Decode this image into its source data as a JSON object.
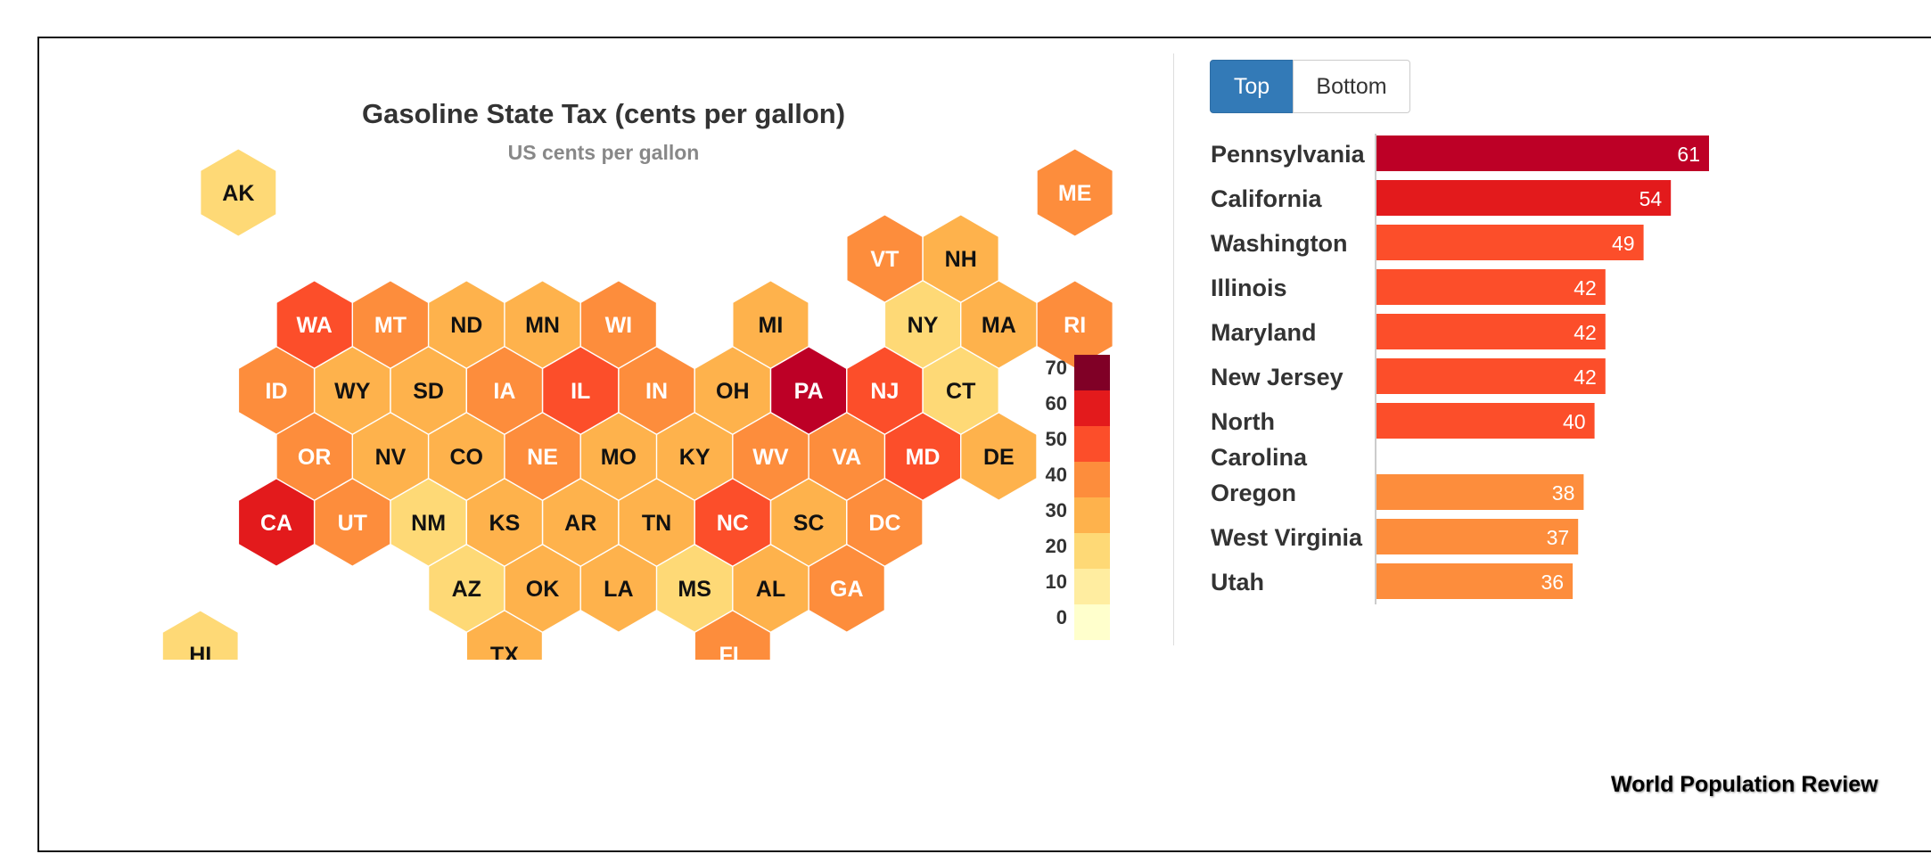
{
  "chart_data": [
    {
      "type": "heatmap",
      "title": "Gasoline State Tax (cents per gallon)",
      "subtitle": "US cents per gallon",
      "color_scale": {
        "ticks": [
          0,
          10,
          20,
          30,
          40,
          50,
          60,
          70
        ],
        "colors": [
          "#ffffcc",
          "#ffeda0",
          "#fed976",
          "#feb24c",
          "#fd8d3c",
          "#fc4e2a",
          "#e31a1c",
          "#bd0026",
          "#800026"
        ]
      },
      "states": [
        {
          "code": "AK",
          "value": 15,
          "row": -1,
          "col": -1
        },
        {
          "code": "ME",
          "value": 30,
          "row": -1,
          "col": 10
        },
        {
          "code": "VT",
          "value": 32,
          "row": 0,
          "col": 8
        },
        {
          "code": "NH",
          "value": 24,
          "row": 0,
          "col": 9
        },
        {
          "code": "WA",
          "value": 49,
          "row": 1,
          "col": 0
        },
        {
          "code": "MT",
          "value": 33,
          "row": 1,
          "col": 1
        },
        {
          "code": "ND",
          "value": 23,
          "row": 1,
          "col": 2
        },
        {
          "code": "MN",
          "value": 29,
          "row": 1,
          "col": 3
        },
        {
          "code": "WI",
          "value": 33,
          "row": 1,
          "col": 4
        },
        {
          "code": "MI",
          "value": 27,
          "row": 1,
          "col": 6
        },
        {
          "code": "NY",
          "value": 18,
          "row": 1,
          "col": 8
        },
        {
          "code": "MA",
          "value": 24,
          "row": 1,
          "col": 9
        },
        {
          "code": "RI",
          "value": 35,
          "row": 1,
          "col": 10
        },
        {
          "code": "ID",
          "value": 33,
          "row": 2,
          "col": 0
        },
        {
          "code": "WY",
          "value": 24,
          "row": 2,
          "col": 1
        },
        {
          "code": "SD",
          "value": 28,
          "row": 2,
          "col": 2
        },
        {
          "code": "IA",
          "value": 30,
          "row": 2,
          "col": 3
        },
        {
          "code": "IL",
          "value": 42,
          "row": 2,
          "col": 4
        },
        {
          "code": "IN",
          "value": 33,
          "row": 2,
          "col": 5
        },
        {
          "code": "OH",
          "value": 29,
          "row": 2,
          "col": 6
        },
        {
          "code": "PA",
          "value": 61,
          "row": 2,
          "col": 7
        },
        {
          "code": "NJ",
          "value": 42,
          "row": 2,
          "col": 8
        },
        {
          "code": "CT",
          "value": 17,
          "row": 2,
          "col": 9
        },
        {
          "code": "OR",
          "value": 38,
          "row": 3,
          "col": 0
        },
        {
          "code": "NV",
          "value": 23,
          "row": 3,
          "col": 1
        },
        {
          "code": "CO",
          "value": 22,
          "row": 3,
          "col": 2
        },
        {
          "code": "NE",
          "value": 30,
          "row": 3,
          "col": 3
        },
        {
          "code": "MO",
          "value": 24,
          "row": 3,
          "col": 4
        },
        {
          "code": "KY",
          "value": 26,
          "row": 3,
          "col": 5
        },
        {
          "code": "WV",
          "value": 37,
          "row": 3,
          "col": 6
        },
        {
          "code": "VA",
          "value": 30,
          "row": 3,
          "col": 7
        },
        {
          "code": "MD",
          "value": 42,
          "row": 3,
          "col": 8
        },
        {
          "code": "DE",
          "value": 23,
          "row": 3,
          "col": 9
        },
        {
          "code": "CA",
          "value": 54,
          "row": 4,
          "col": 0
        },
        {
          "code": "UT",
          "value": 36,
          "row": 4,
          "col": 1
        },
        {
          "code": "NM",
          "value": 19,
          "row": 4,
          "col": 2
        },
        {
          "code": "KS",
          "value": 24,
          "row": 4,
          "col": 3
        },
        {
          "code": "AR",
          "value": 24,
          "row": 4,
          "col": 4
        },
        {
          "code": "TN",
          "value": 27,
          "row": 4,
          "col": 5
        },
        {
          "code": "NC",
          "value": 40,
          "row": 4,
          "col": 6
        },
        {
          "code": "SC",
          "value": 28,
          "row": 4,
          "col": 7
        },
        {
          "code": "DC",
          "value": 33,
          "row": 4,
          "col": 8
        },
        {
          "code": "AZ",
          "value": 19,
          "row": 5,
          "col": 2
        },
        {
          "code": "OK",
          "value": 20,
          "row": 5,
          "col": 3
        },
        {
          "code": "LA",
          "value": 20,
          "row": 5,
          "col": 4
        },
        {
          "code": "MS",
          "value": 18,
          "row": 5,
          "col": 5
        },
        {
          "code": "AL",
          "value": 29,
          "row": 5,
          "col": 6
        },
        {
          "code": "GA",
          "value": 31,
          "row": 5,
          "col": 7
        },
        {
          "code": "HI",
          "value": 19,
          "row": 6,
          "col": -1
        },
        {
          "code": "TX",
          "value": 20,
          "row": 6,
          "col": 3
        },
        {
          "code": "FL",
          "value": 33,
          "row": 6,
          "col": 6
        }
      ]
    },
    {
      "type": "bar",
      "orientation": "horizontal",
      "categories": [
        "Pennsylvania",
        "California",
        "Washington",
        "Illinois",
        "Maryland",
        "New Jersey",
        "North Carolina",
        "Oregon",
        "West Virginia",
        "Utah"
      ],
      "values": [
        61,
        54,
        49,
        42,
        42,
        42,
        40,
        38,
        37,
        36
      ],
      "xlim": [
        0,
        61
      ]
    }
  ],
  "toggle": {
    "top_label": "Top",
    "bottom_label": "Bottom",
    "selected": "Top"
  },
  "source_label": "World Population Review"
}
